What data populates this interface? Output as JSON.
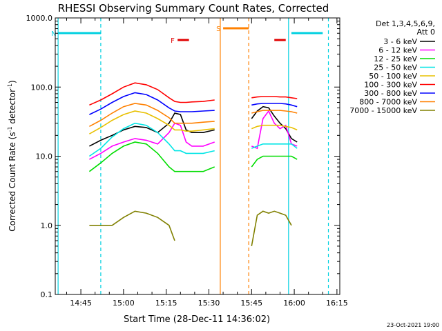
{
  "chart_data": {
    "type": "line",
    "title": "RHESSI Observing Summary Count Rates, Corrected",
    "xlabel": "Start Time (28-Dec-11 14:36:02)",
    "ylabel_main": "Corrected Count Rate (s",
    "ylabel_sup1": "-1",
    "ylabel_mid": " detector",
    "ylabel_sup2": "-1",
    "ylabel_end": ")",
    "y_scale": "log",
    "ylim": [
      0.1,
      1000
    ],
    "xlim": [
      "14:36",
      "16:16"
    ],
    "xticks": [
      "14:45",
      "15:00",
      "15:15",
      "15:30",
      "15:45",
      "16:00",
      "16:15"
    ],
    "yticks": [
      "0.1",
      "1.0",
      "10.0",
      "100.0",
      "1000.0"
    ],
    "footer_date": "23-Oct-2021 19:00",
    "legend": {
      "header_line1": "Det 1,3,4,5,6,9,",
      "header_line2": "Att 0",
      "entries": [
        {
          "label": "3 - 6 keV",
          "color": "#000000"
        },
        {
          "label": "6 - 12 keV",
          "color": "#ff00ff"
        },
        {
          "label": "12 - 25 keV",
          "color": "#00dd00"
        },
        {
          "label": "25 - 50 keV",
          "color": "#00e5e5"
        },
        {
          "label": "50 - 100 keV",
          "color": "#e8c000"
        },
        {
          "label": "100 - 300 keV",
          "color": "#ff0000"
        },
        {
          "label": "300 - 800 keV",
          "color": "#0000ff"
        },
        {
          "label": "800 - 7000 keV",
          "color": "#ff8000"
        },
        {
          "label": "7000 - 15000 keV",
          "color": "#808000"
        }
      ]
    },
    "annotations": [
      {
        "label": "N",
        "color": "#00d0e0",
        "start": "14:37",
        "end": "14:52"
      },
      {
        "label": "F",
        "color": "#e00000",
        "start": "15:19",
        "end": "15:23"
      },
      {
        "label": "S",
        "color": "#ff8000",
        "start": "15:35",
        "end": "15:44"
      },
      {
        "label": "",
        "color": "#e00000",
        "start": "15:53",
        "end": "15:57"
      },
      {
        "label": "",
        "color": "#00d0e0",
        "start": "15:59",
        "end": "16:10"
      }
    ],
    "vlines": [
      {
        "time": "14:37",
        "style": "solid",
        "color": "#00d0e0"
      },
      {
        "time": "14:52",
        "style": "dashed",
        "color": "#00d0e0"
      },
      {
        "time": "15:34",
        "style": "solid",
        "color": "#ff8000"
      },
      {
        "time": "15:44",
        "style": "dashed",
        "color": "#ff8000"
      },
      {
        "time": "15:58",
        "style": "solid",
        "color": "#00d0e0"
      },
      {
        "time": "16:12",
        "style": "dashed",
        "color": "#00d0e0"
      }
    ],
    "segments": [
      {
        "name": "daylight-1",
        "x": [
          "14:48",
          "14:52",
          "14:56",
          "15:00",
          "15:04",
          "15:08",
          "15:12",
          "15:16",
          "15:18",
          "15:20",
          "15:22",
          "15:24",
          "15:28",
          "15:32"
        ]
      },
      {
        "name": "daylight-2",
        "x": [
          "15:45",
          "15:47",
          "15:49",
          "15:51",
          "15:53",
          "15:55",
          "15:57",
          "15:59",
          "16:01"
        ]
      }
    ],
    "series": [
      {
        "name": "3 - 6 keV",
        "color": "#000000",
        "seg1": [
          14,
          17,
          20,
          24,
          27,
          26,
          22,
          30,
          42,
          40,
          24,
          22,
          22,
          24
        ],
        "seg2": [
          35,
          45,
          52,
          50,
          38,
          30,
          25,
          18,
          16
        ]
      },
      {
        "name": "6 - 12 keV",
        "color": "#ff00ff",
        "seg1": [
          9,
          11,
          14,
          16,
          18,
          17,
          15,
          22,
          30,
          28,
          16,
          14,
          14,
          16
        ],
        "seg2": [
          14,
          13,
          35,
          45,
          30,
          25,
          28,
          15,
          14
        ]
      },
      {
        "name": "12 - 25 keV",
        "color": "#00dd00",
        "seg1": [
          6,
          8,
          11,
          14,
          16,
          15,
          11,
          7,
          6,
          6,
          6,
          6,
          6,
          7
        ],
        "seg2": [
          7,
          9,
          10,
          10,
          10,
          10,
          10,
          10,
          9
        ]
      },
      {
        "name": "25 - 50 keV",
        "color": "#00e5e5",
        "seg1": [
          10,
          13,
          19,
          25,
          30,
          28,
          22,
          15,
          12,
          12,
          11,
          11,
          11,
          12
        ],
        "seg2": [
          13,
          14,
          15,
          15,
          15,
          15,
          15,
          15,
          13
        ]
      },
      {
        "name": "50 - 100 keV",
        "color": "#e8c000",
        "seg1": [
          21,
          26,
          33,
          40,
          45,
          42,
          35,
          28,
          24,
          24,
          23,
          23,
          24,
          25
        ],
        "seg2": [
          25,
          27,
          28,
          28,
          28,
          28,
          27,
          26,
          24
        ]
      },
      {
        "name": "100 - 300 keV",
        "color": "#ff0000",
        "seg1": [
          55,
          65,
          80,
          100,
          115,
          108,
          92,
          70,
          62,
          60,
          60,
          61,
          62,
          65
        ],
        "seg2": [
          70,
          72,
          73,
          73,
          73,
          72,
          72,
          70,
          68
        ]
      },
      {
        "name": "300 - 800 keV",
        "color": "#0000ff",
        "seg1": [
          40,
          48,
          60,
          73,
          83,
          78,
          65,
          50,
          45,
          44,
          44,
          44,
          45,
          46
        ],
        "seg2": [
          55,
          57,
          58,
          58,
          58,
          58,
          57,
          55,
          52
        ]
      },
      {
        "name": "800 - 7000 keV",
        "color": "#ff8000",
        "seg1": [
          27,
          33,
          42,
          52,
          58,
          55,
          46,
          36,
          30,
          30,
          30,
          30,
          31,
          32
        ],
        "seg2": [
          42,
          44,
          46,
          46,
          46,
          46,
          45,
          44,
          42
        ]
      },
      {
        "name": "7000 - 15000 keV",
        "color": "#808000",
        "seg1": [
          1.0,
          1.0,
          1.0,
          1.3,
          1.6,
          1.5,
          1.3,
          1.0,
          0.6,
          null,
          null,
          null,
          null,
          null
        ],
        "seg2": [
          0.5,
          1.4,
          1.6,
          1.5,
          1.6,
          1.5,
          1.4,
          1.0,
          null
        ]
      }
    ]
  }
}
